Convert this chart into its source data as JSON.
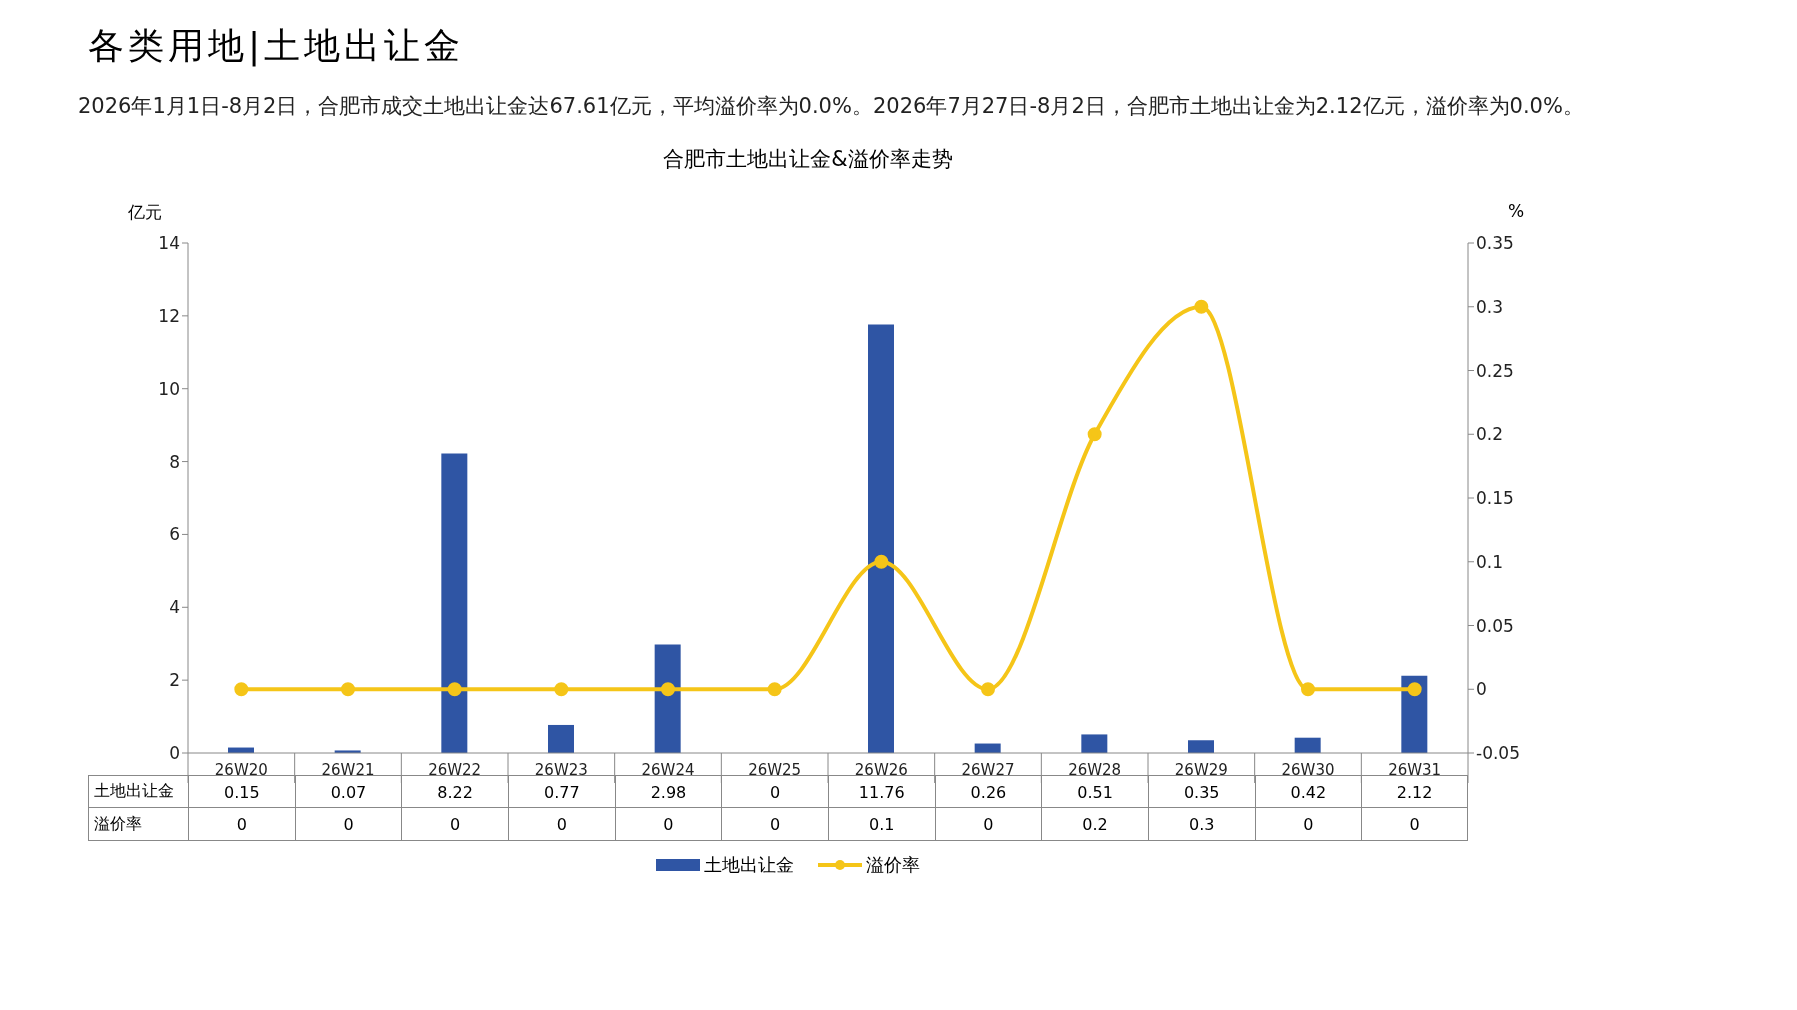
{
  "chart_data": {
    "type": "bar",
    "title": "合肥市土地出让金&溢价率走势",
    "annotations": [
      "各类用地|土地出让金",
      "2026年1月1日-8月2日，合肥市成交土地出让金达67.61亿元，平均溢价率为0.0%。2026年7月27日-8月2日，合肥市土地出让金为2.12亿元，溢价率为0.0%。"
    ],
    "ylabel": "亿元",
    "y2label": "%",
    "categories": [
      "26W20",
      "26W21",
      "26W22",
      "26W23",
      "26W24",
      "26W25",
      "26W26",
      "26W27",
      "26W28",
      "26W29",
      "26W30",
      "26W31"
    ],
    "series": [
      {
        "name": "土地出让金",
        "color": "#2f55a4",
        "values": [
          0.15,
          0.07,
          8.22,
          0.77,
          2.98,
          0,
          11.76,
          0.26,
          0.51,
          0.35,
          0.42,
          2.12
        ]
      },
      {
        "name": "溢价率",
        "type": "line",
        "axis": "y2",
        "color": "#f5c518",
        "values": [
          0,
          0,
          0,
          0,
          0,
          0,
          0.1,
          0,
          0.2,
          0.3,
          0,
          0
        ]
      }
    ],
    "ylim": [
      0,
      14
    ],
    "yticks": [
      0,
      2,
      4,
      6,
      8,
      10,
      12,
      14
    ],
    "y2lim": [
      -0.05,
      0.35
    ],
    "y2ticks": [
      -0.05,
      0,
      0.05,
      0.1,
      0.15,
      0.2,
      0.25,
      0.3,
      0.35
    ],
    "data_labels": true,
    "marker": "circle",
    "legend": "bottom",
    "grid": false
  }
}
